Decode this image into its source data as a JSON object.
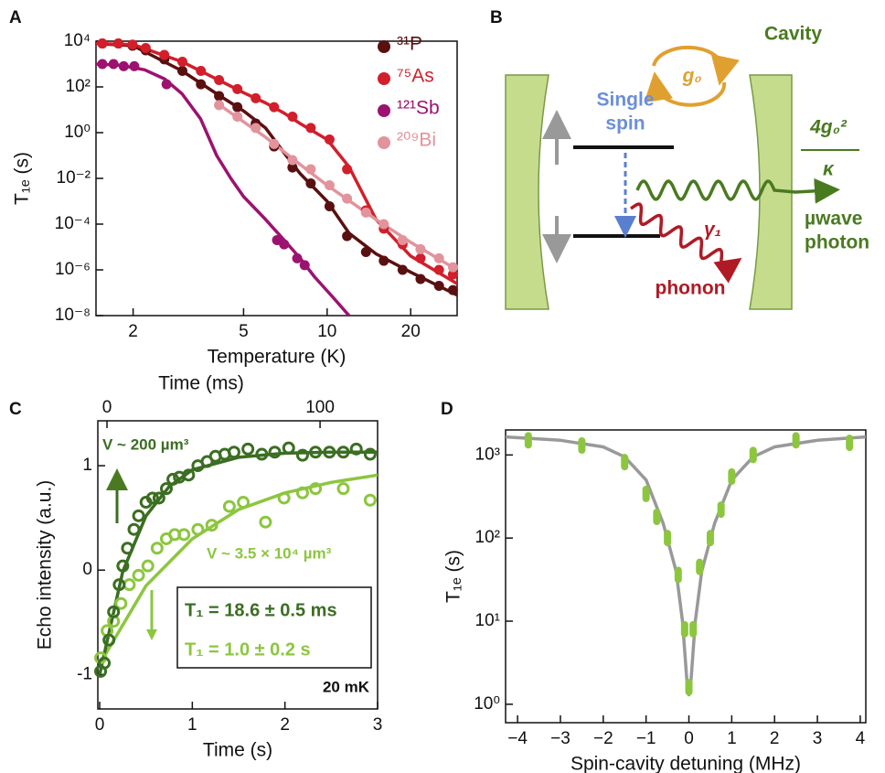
{
  "panel_labels": [
    "A",
    "B",
    "C",
    "D"
  ],
  "diagram": {
    "single_spin": [
      "Single",
      "spin"
    ],
    "cavity": "Cavity",
    "coupling": "g₀",
    "rate_numerator": "4g₀²",
    "rate_denominator": "κ",
    "phonon_rate": "γ₁",
    "photon": [
      "µwave",
      "photon"
    ],
    "phonon": "phonon"
  },
  "chart_data": [
    {
      "type": "scatter",
      "xscale": "log",
      "yscale": "log",
      "xlabel": "Temperature (K)",
      "ylabel": "T₁ₑ (s)",
      "xlim": [
        1.47,
        29.4
      ],
      "ylim": [
        1e-08,
        10000
      ],
      "xticks": [
        2,
        5,
        10,
        20
      ],
      "yticks": [
        {
          "value": 10000,
          "label": "10⁴"
        },
        {
          "value": 100,
          "label": "10²"
        },
        {
          "value": 1,
          "label": "10⁰"
        },
        {
          "value": 0.01,
          "label": "10⁻²"
        },
        {
          "value": 0.0001,
          "label": "10⁻⁴"
        },
        {
          "value": 1e-06,
          "label": "10⁻⁶"
        },
        {
          "value": 1e-08,
          "label": "10⁻⁸"
        }
      ],
      "legend": "upper right",
      "series": [
        {
          "name": "³¹P",
          "color": "#5a1010",
          "marker": "filled",
          "x": [
            1.55,
            1.77,
            1.99,
            2.22,
            2.59,
            3.01,
            3.51,
            4.08,
            4.75,
            5.53,
            6.44,
            7.5,
            8.73,
            10.2,
            11.8,
            13.8,
            16.0,
            18.7,
            21.7,
            25.3,
            28.4
          ],
          "values": [
            7900,
            7900,
            6300,
            4000,
            1600,
            500,
            130,
            40,
            13,
            2.5,
            0.25,
            0.03,
            0.006,
            0.0006,
            3e-05,
            6e-06,
            2.5e-06,
            1e-06,
            4e-07,
            2e-07,
            1.3e-07
          ]
        },
        {
          "name": "⁷⁵As",
          "color": "#d21f2b",
          "marker": "filled",
          "x": [
            1.55,
            1.77,
            1.99,
            2.22,
            2.59,
            3.01,
            3.51,
            4.08,
            4.75,
            5.53,
            6.44,
            7.5,
            8.73,
            10.2,
            11.8,
            13.8,
            16.0,
            18.7,
            21.7,
            25.3,
            28.4
          ],
          "values": [
            7900,
            7900,
            7100,
            5000,
            2500,
            1260,
            500,
            200,
            80,
            32,
            13,
            5,
            1.6,
            0.5,
            0.025,
            0.0004,
            6.3e-05,
            1.3e-05,
            3.2e-06,
            1e-06,
            6.3e-07
          ]
        },
        {
          "name": "¹²¹Sb",
          "color": "#9c1270",
          "marker": "filled",
          "x": [
            1.55,
            1.7,
            1.85,
            2.02,
            2.64,
            6.6,
            7.0,
            7.8,
            8.3
          ],
          "values": [
            1000,
            1000,
            800,
            800,
            130,
            2e-05,
            1.3e-05,
            3.2e-06,
            1.6e-06
          ]
        },
        {
          "name": "²⁰⁹Bi",
          "color": "#e2939c",
          "marker": "filled",
          "x": [
            4.08,
            4.75,
            5.53,
            6.44,
            7.5,
            8.73,
            10.2,
            11.8,
            13.8,
            16.0,
            18.7,
            21.7,
            25.3,
            28.4
          ],
          "values": [
            16,
            5,
            1.6,
            0.32,
            0.063,
            0.025,
            0.005,
            0.0013,
            0.00032,
            0.0001,
            2e-05,
            8e-06,
            3.2e-06,
            1.3e-06
          ]
        },
        {
          "color": "#5a1010",
          "marker": "line",
          "x": [
            1.47,
            2,
            3,
            4,
            5,
            6,
            7,
            8,
            10,
            12,
            15,
            20,
            29.4
          ],
          "values": [
            7900,
            6300,
            500,
            50,
            8.9,
            1.6,
            0.13,
            0.016,
            0.001,
            4e-05,
            5e-06,
            7.9e-07,
            7.9e-08
          ]
        },
        {
          "color": "#d21f2b",
          "marker": "line",
          "x": [
            1.47,
            2,
            3,
            4,
            5,
            6,
            7,
            8,
            10,
            12,
            15,
            20,
            29.4
          ],
          "values": [
            7900,
            7100,
            1260,
            220,
            56,
            20,
            7.1,
            2.5,
            0.5,
            0.032,
            0.00016,
            4e-06,
            2.5e-07
          ]
        },
        {
          "color": "#9c1270",
          "marker": "line",
          "x": [
            1.47,
            1.8,
            2.2,
            2.6,
            3.0,
            3.5,
            4.0,
            4.5,
            5,
            6,
            7,
            8,
            9,
            10.5,
            12
          ],
          "values": [
            1000,
            890,
            560,
            220,
            50,
            4,
            0.1,
            0.01,
            0.0016,
            0.00016,
            2e-05,
            3.2e-06,
            5e-07,
            6.3e-08,
            1e-08
          ]
        },
        {
          "color": "#e2939c",
          "marker": "line",
          "x": [
            4,
            6,
            8,
            10,
            15,
            20,
            29.4
          ],
          "values": [
            20,
            0.63,
            0.04,
            0.005,
            0.00016,
            1.6e-05,
            1e-06
          ]
        }
      ]
    },
    {
      "type": "scatter",
      "xlabel": "Time (s)",
      "ylabel": "Echo intensity (a.u.)",
      "x2label": "Time (ms)",
      "xlim": [
        -0.02,
        3
      ],
      "ylim": [
        -1.33,
        1.43
      ],
      "x2lim": [
        -4.3,
        127
      ],
      "xticks": [
        0,
        1,
        2,
        3
      ],
      "yticks": [
        -1,
        0,
        1
      ],
      "x2ticks": [
        0,
        100
      ],
      "annotations": [
        {
          "text": "V ~ 200 µm³",
          "color": "#3b6e22"
        },
        {
          "text": "V ~ 3.5 × 10⁴ µm³",
          "color": "#8cc63f"
        },
        {
          "text": "T₁ = 18.6 ± 0.5 ms",
          "color": "#3b6e22"
        },
        {
          "text": "T₁ = 1.0 ± 0.2 s",
          "color": "#8cc63f"
        },
        {
          "text": "20 mK",
          "color": "#111111"
        }
      ],
      "series": [
        {
          "color": "#8cc63f",
          "marker": "open",
          "x": [
            0.01,
            0.08,
            0.15,
            0.23,
            0.32,
            0.42,
            0.52,
            0.62,
            0.72,
            0.81,
            0.91,
            1.06,
            1.21,
            1.4,
            1.55,
            1.79,
            1.99,
            2.19,
            2.33,
            2.63,
            2.92
          ],
          "values": [
            -0.84,
            -0.58,
            -0.49,
            -0.32,
            -0.14,
            -0.05,
            0.04,
            0.21,
            0.3,
            0.34,
            0.34,
            0.39,
            0.43,
            0.61,
            0.65,
            0.46,
            0.69,
            0.74,
            0.78,
            0.78,
            0.67
          ]
        },
        {
          "color": "#3b6e22",
          "marker": "open",
          "x": [
            0.01,
            0.05,
            0.1,
            0.15,
            0.21,
            0.25,
            0.3,
            0.37,
            0.42,
            0.5,
            0.57,
            0.64,
            0.72,
            0.79,
            0.86,
            0.96,
            1.06,
            1.16,
            1.25,
            1.35,
            1.45,
            1.6,
            1.75,
            1.89,
            2.04,
            2.19,
            2.33,
            2.48,
            2.63,
            2.77,
            2.92
          ],
          "values": [
            -0.97,
            -0.89,
            -0.67,
            -0.4,
            -0.14,
            0.04,
            0.21,
            0.39,
            0.52,
            0.65,
            0.69,
            0.69,
            0.78,
            0.87,
            0.89,
            0.91,
            1.0,
            1.04,
            1.09,
            1.11,
            1.13,
            1.16,
            1.11,
            1.13,
            1.17,
            1.1,
            1.13,
            1.13,
            1.13,
            1.16,
            1.11
          ]
        },
        {
          "color": "#8cc63f",
          "marker": "line",
          "x": [
            0,
            0.5,
            1,
            1.5,
            2,
            2.5,
            3
          ],
          "values": [
            -0.9,
            -0.15,
            0.3,
            0.58,
            0.74,
            0.84,
            0.91
          ]
        },
        {
          "color": "#3b6e22",
          "marker": "line",
          "x": [
            0,
            0.25,
            0.5,
            0.75,
            1,
            1.5,
            2,
            2.5,
            3
          ],
          "values": [
            -1.0,
            -0.01,
            0.52,
            0.8,
            0.96,
            1.08,
            1.12,
            1.13,
            1.13
          ]
        }
      ]
    },
    {
      "type": "scatter",
      "yscale": "log",
      "xlabel": "Spin-cavity detuning (MHz)",
      "ylabel": "T₁ₑ (s)",
      "xlim": [
        -4.28,
        4.13
      ],
      "ylim": [
        0.6,
        2000
      ],
      "xticks": [
        {
          "value": -4,
          "label": "−4"
        },
        {
          "value": -3,
          "label": "−3"
        },
        {
          "value": -2,
          "label": "−2"
        },
        {
          "value": -1,
          "label": "−1"
        },
        0,
        1,
        2,
        3,
        4
      ],
      "yticks": [
        {
          "value": 1,
          "label": "10⁰"
        },
        {
          "value": 10,
          "label": "10¹"
        },
        {
          "value": 100,
          "label": "10²"
        },
        {
          "value": 1000,
          "label": "10³"
        }
      ],
      "series": [
        {
          "color": "#999999",
          "marker": "line",
          "x": [
            -4.28,
            -3,
            -2,
            -1.5,
            -1,
            -0.6,
            -0.3,
            -0.15,
            -0.05,
            0,
            0.05,
            0.15,
            0.3,
            0.6,
            1,
            1.5,
            2,
            3,
            4.13
          ],
          "values": [
            1650,
            1500,
            1250,
            950,
            500,
            150,
            40,
            10,
            2,
            1.3,
            2,
            10,
            40,
            150,
            500,
            950,
            1250,
            1500,
            1650
          ]
        },
        {
          "color": "#8cc63f",
          "marker": "dash",
          "x": [
            -3.75,
            -2.5,
            -1.5,
            -1.0,
            -0.75,
            -0.5,
            -0.25,
            -0.1,
            0,
            0.1,
            0.25,
            0.5,
            0.75,
            1.0,
            1.5,
            2.5,
            3.75
          ],
          "values": [
            1500,
            1300,
            820,
            340,
            180,
            100,
            36,
            8,
            1.6,
            8,
            45,
            100,
            220,
            550,
            1000,
            1500,
            1400
          ]
        }
      ]
    }
  ]
}
